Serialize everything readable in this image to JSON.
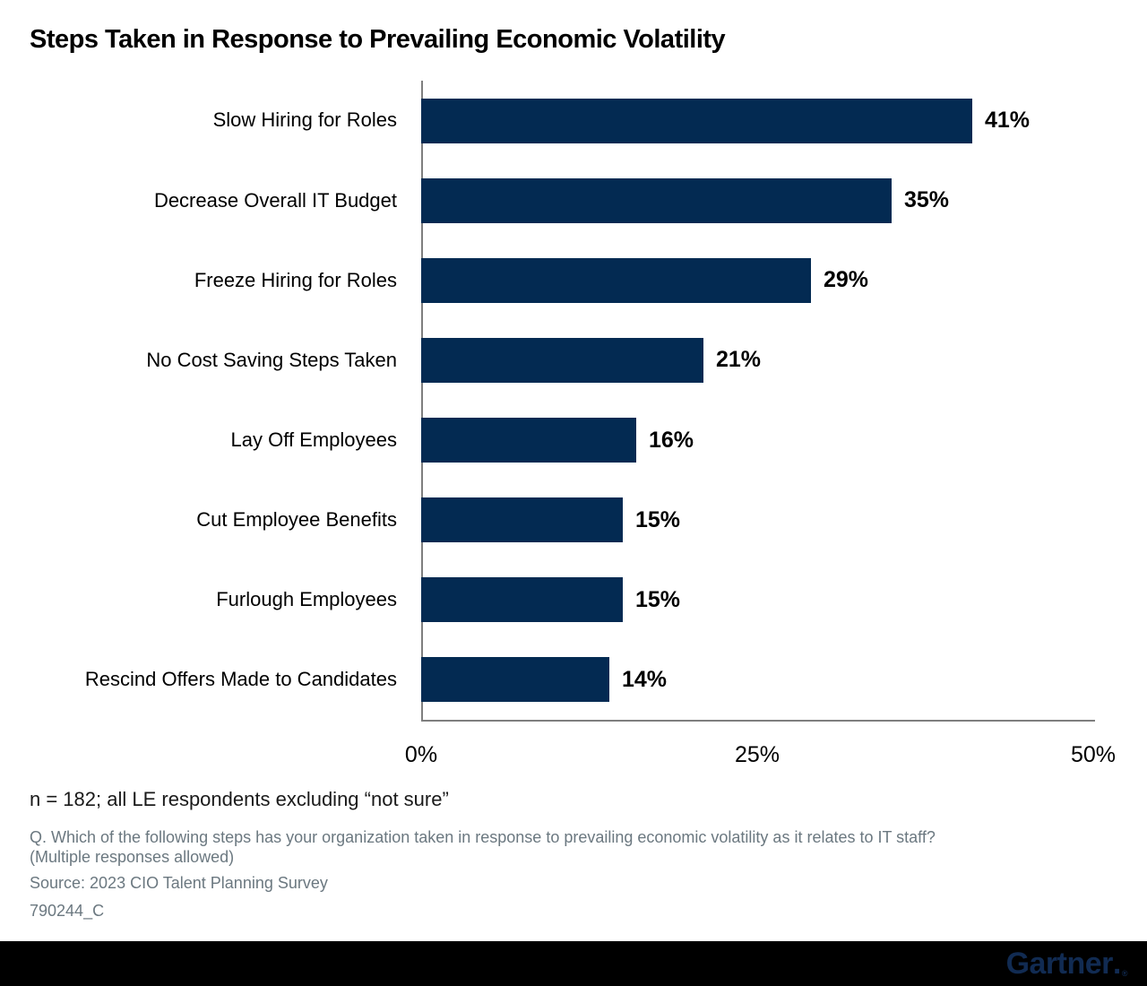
{
  "title": "Steps Taken in Response to Prevailing Economic Volatility",
  "chart_data": {
    "type": "bar",
    "orientation": "horizontal",
    "title": "Steps Taken in Response to Prevailing Economic Volatility",
    "categories": [
      "Slow Hiring for Roles",
      "Decrease Overall IT Budget",
      "Freeze Hiring for Roles",
      "No Cost Saving Steps Taken",
      "Lay Off Employees",
      "Cut Employee Benefits",
      "Furlough Employees",
      "Rescind Offers Made to Candidates"
    ],
    "values": [
      41,
      35,
      29,
      21,
      16,
      15,
      15,
      14
    ],
    "value_labels": [
      "41%",
      "35%",
      "29%",
      "21%",
      "16%",
      "15%",
      "15%",
      "14%"
    ],
    "xlabel": "",
    "ylabel": "",
    "xlim": [
      0,
      50
    ],
    "x_tick_values": [
      0,
      25,
      50
    ],
    "x_tick_labels": [
      "0%",
      "25%",
      "50%"
    ],
    "grid": false,
    "legend": false,
    "bar_color": "#032a52",
    "axis_color": "#7f7f7f"
  },
  "footnotes": {
    "sample": "n = 182; all LE respondents excluding “not sure”",
    "question_line1": "Q. Which of the following steps has your organization taken in response to prevailing economic volatility as it relates to IT staff?",
    "question_line2": "(Multiple responses allowed)",
    "source": "Source: 2023 CIO Talent Planning Survey",
    "doc_id": "790244_C"
  },
  "footer": {
    "brand": "Gartner",
    "brand_period": ".",
    "registered_mark": "®",
    "brand_color": "#112b52",
    "bar_color": "#000000"
  }
}
